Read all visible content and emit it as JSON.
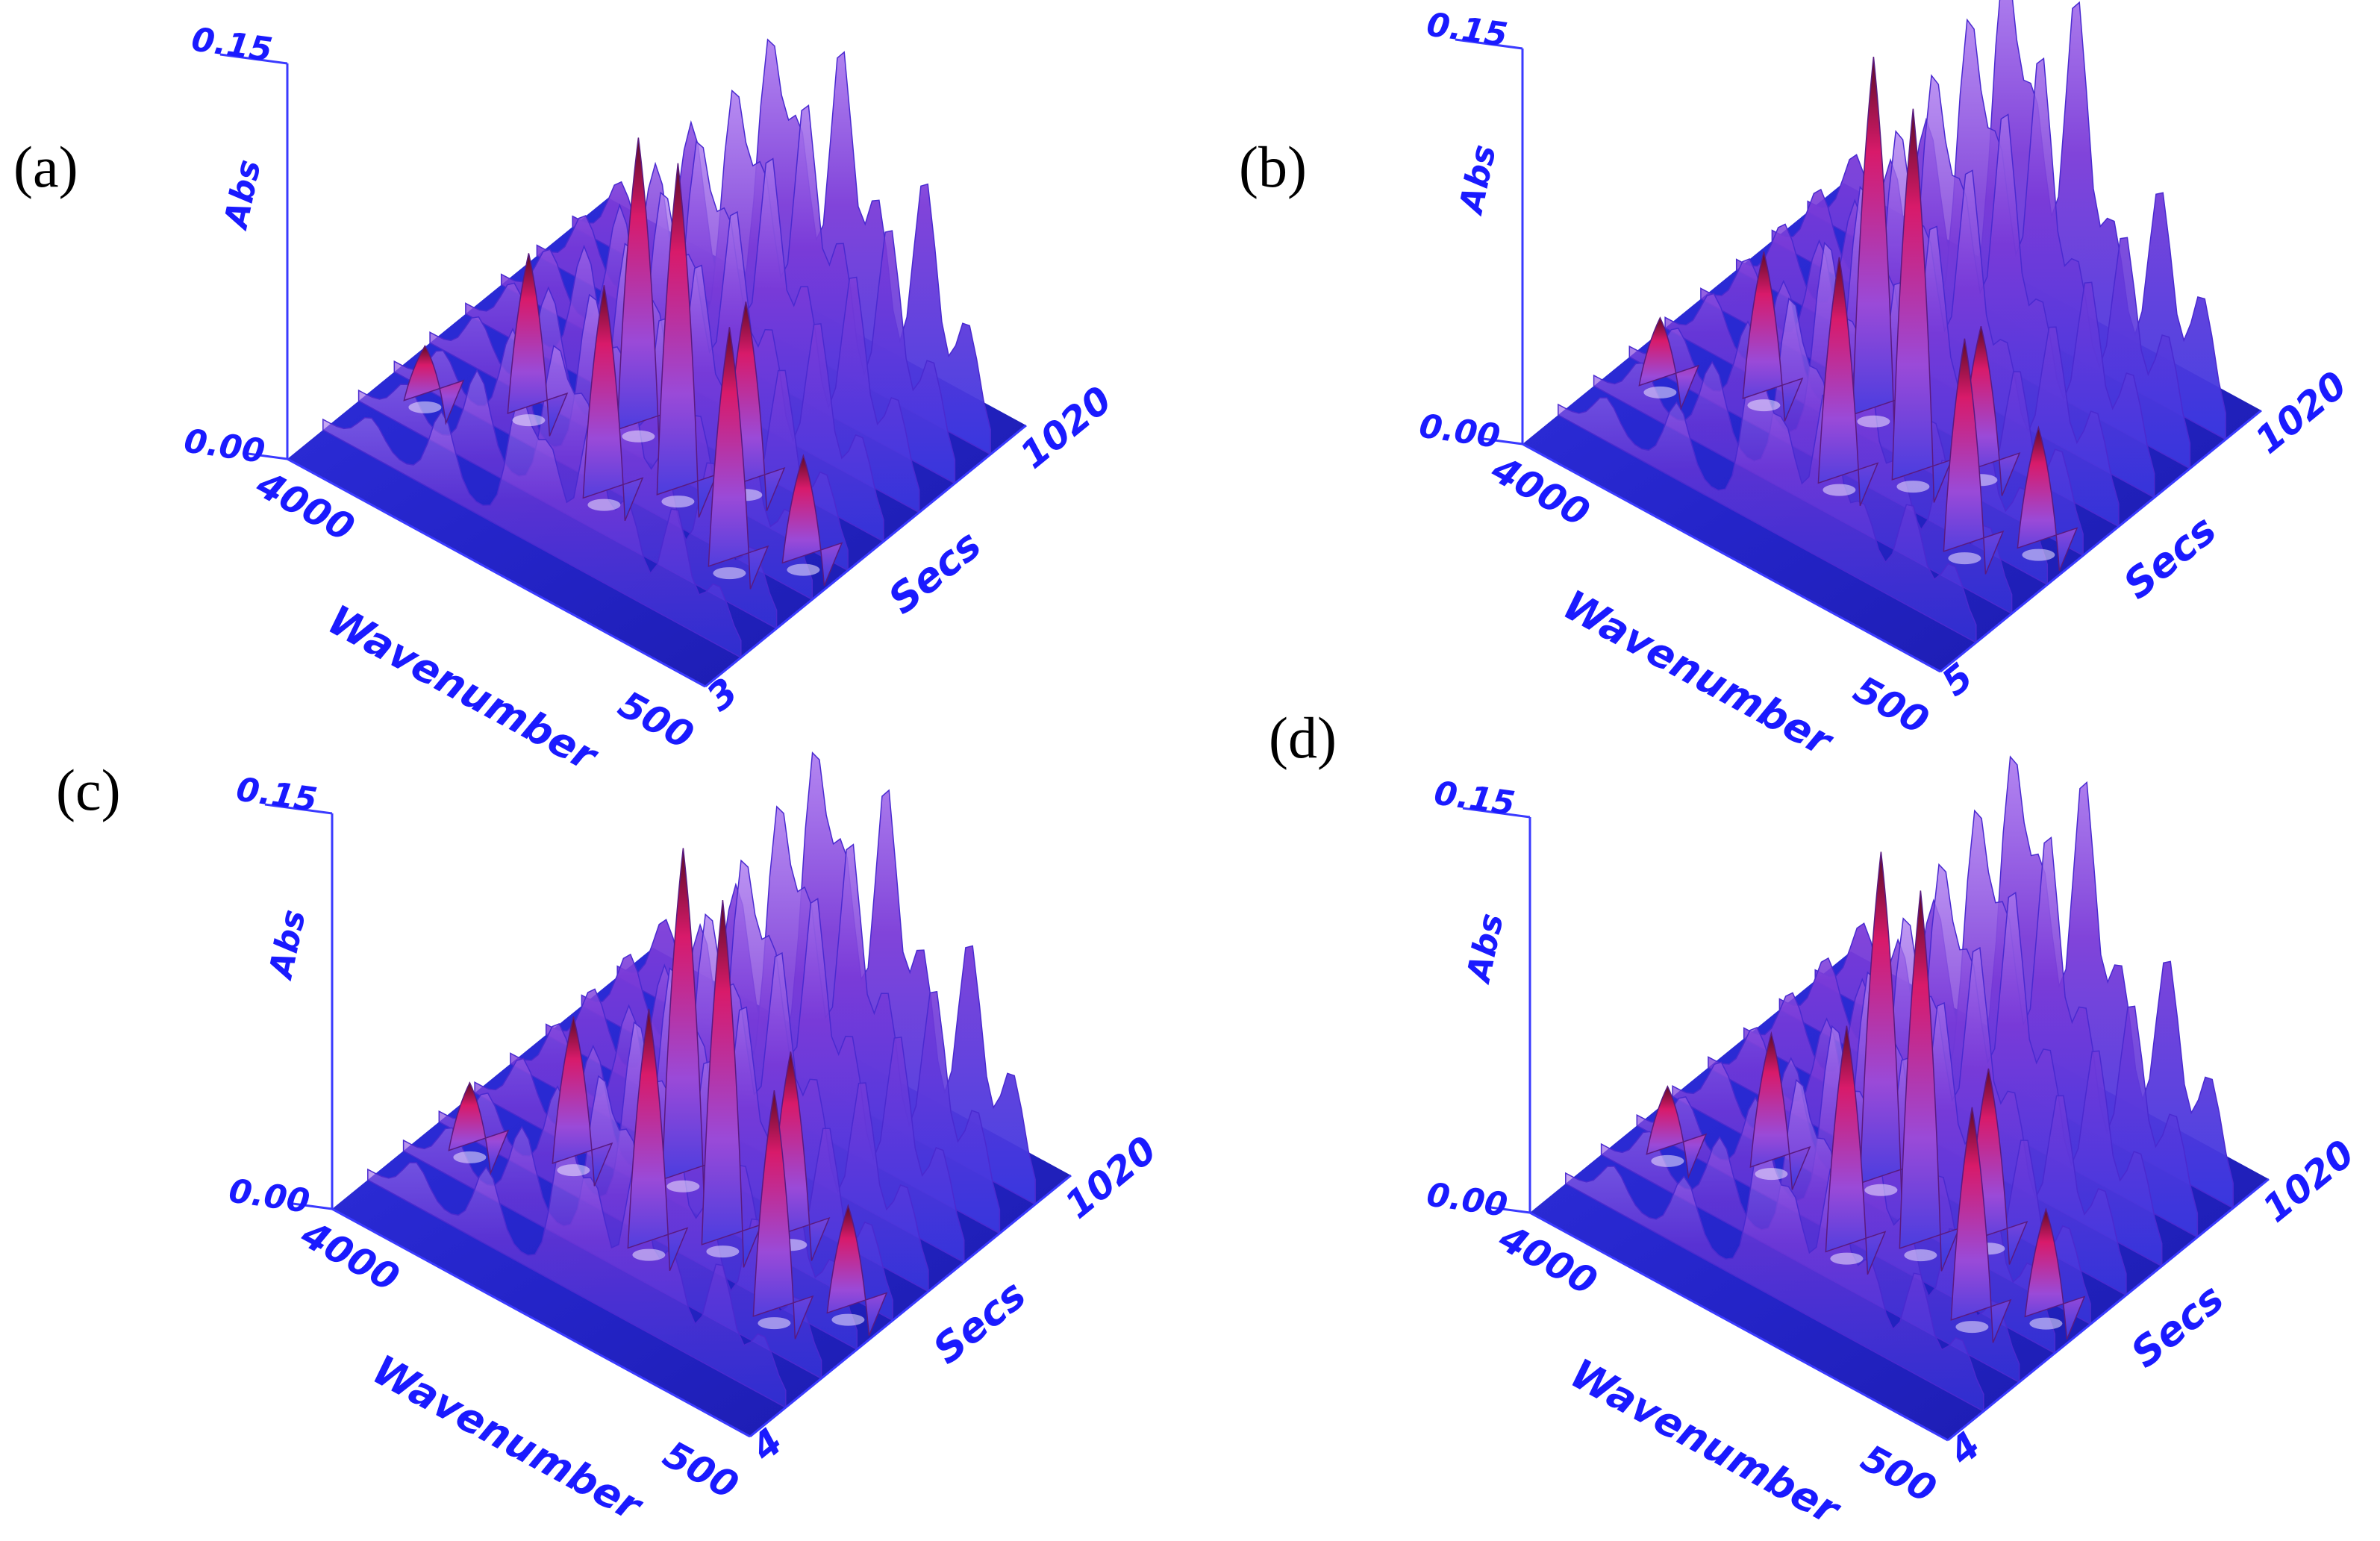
{
  "colors": {
    "axis": "#1a1aff",
    "surface_low": "#1e1ec8",
    "surface_mid": "#6a2ad0",
    "surface_high": "#d8186a",
    "surface_top": "#3a0a14",
    "highlight": "#f2e8ff"
  },
  "chart_data": [
    {
      "type": "surface3d",
      "panel_label": "(a)",
      "xlabel": "Wavenumber",
      "ylabel": "Secs",
      "zlabel": "Abs",
      "x_ticks": [
        "4000",
        "500"
      ],
      "y_ticks": [
        "3",
        "1020"
      ],
      "z_ticks": [
        "0.00",
        "0.15"
      ],
      "xlim": [
        4000,
        500
      ],
      "ylim": [
        3,
        1020
      ],
      "zlim": [
        0.0,
        0.15
      ],
      "peaks": [
        {
          "wavenumber": 3600,
          "abs": 0.025
        },
        {
          "wavenumber": 3000,
          "abs": 0.065
        },
        {
          "wavenumber": 2350,
          "abs": 0.115
        },
        {
          "wavenumber": 2100,
          "abs": 0.085
        },
        {
          "wavenumber": 1750,
          "abs": 0.13
        },
        {
          "wavenumber": 1450,
          "abs": 0.075
        },
        {
          "wavenumber": 1050,
          "abs": 0.095
        },
        {
          "wavenumber": 700,
          "abs": 0.045
        }
      ]
    },
    {
      "type": "surface3d",
      "panel_label": "(b)",
      "xlabel": "Wavenumber",
      "ylabel": "Secs",
      "zlabel": "Abs",
      "x_ticks": [
        "4000",
        "500"
      ],
      "y_ticks": [
        "5",
        "1020"
      ],
      "z_ticks": [
        "0.00",
        "0.15"
      ],
      "xlim": [
        4000,
        500
      ],
      "ylim": [
        5,
        1020
      ],
      "zlim": [
        0.0,
        0.15
      ],
      "peaks": [
        {
          "wavenumber": 3600,
          "abs": 0.03
        },
        {
          "wavenumber": 3000,
          "abs": 0.06
        },
        {
          "wavenumber": 2350,
          "abs": 0.14
        },
        {
          "wavenumber": 2100,
          "abs": 0.09
        },
        {
          "wavenumber": 1750,
          "abs": 0.145
        },
        {
          "wavenumber": 1450,
          "abs": 0.06
        },
        {
          "wavenumber": 1050,
          "abs": 0.085
        },
        {
          "wavenumber": 700,
          "abs": 0.05
        }
      ]
    },
    {
      "type": "surface3d",
      "panel_label": "(c)",
      "xlabel": "Wavenumber",
      "ylabel": "Secs",
      "zlabel": "Abs",
      "x_ticks": [
        "4000",
        "500"
      ],
      "y_ticks": [
        "4",
        "1020"
      ],
      "z_ticks": [
        "0.00",
        "0.15"
      ],
      "xlim": [
        4000,
        500
      ],
      "ylim": [
        4,
        1020
      ],
      "zlim": [
        0.0,
        0.15
      ],
      "peaks": [
        {
          "wavenumber": 3600,
          "abs": 0.03
        },
        {
          "wavenumber": 3000,
          "abs": 0.06
        },
        {
          "wavenumber": 2350,
          "abs": 0.13
        },
        {
          "wavenumber": 2100,
          "abs": 0.095
        },
        {
          "wavenumber": 1750,
          "abs": 0.135
        },
        {
          "wavenumber": 1450,
          "abs": 0.075
        },
        {
          "wavenumber": 1050,
          "abs": 0.09
        },
        {
          "wavenumber": 700,
          "abs": 0.045
        }
      ]
    },
    {
      "type": "surface3d",
      "panel_label": "(d)",
      "xlabel": "Wavenumber",
      "ylabel": "Secs",
      "zlabel": "Abs",
      "x_ticks": [
        "4000",
        "500"
      ],
      "y_ticks": [
        "4",
        "1020"
      ],
      "z_ticks": [
        "0.00",
        "0.15"
      ],
      "xlim": [
        4000,
        500
      ],
      "ylim": [
        4,
        1020
      ],
      "zlim": [
        0.0,
        0.15
      ],
      "peaks": [
        {
          "wavenumber": 3600,
          "abs": 0.03
        },
        {
          "wavenumber": 3000,
          "abs": 0.055
        },
        {
          "wavenumber": 2350,
          "abs": 0.13
        },
        {
          "wavenumber": 2100,
          "abs": 0.09
        },
        {
          "wavenumber": 1750,
          "abs": 0.14
        },
        {
          "wavenumber": 1450,
          "abs": 0.07
        },
        {
          "wavenumber": 1050,
          "abs": 0.085
        },
        {
          "wavenumber": 700,
          "abs": 0.045
        }
      ]
    }
  ]
}
